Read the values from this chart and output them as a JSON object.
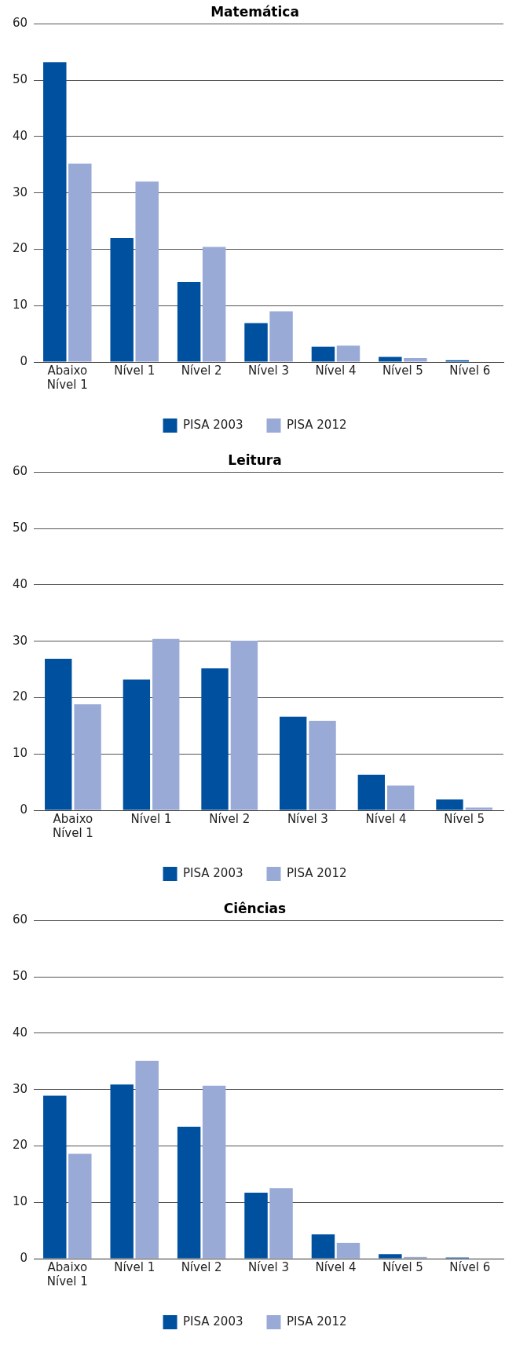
{
  "chart_data": [
    {
      "type": "bar",
      "title": "Matemática",
      "categories": [
        "Abaixo Nível 1",
        "Nível 1",
        "Nível 2",
        "Nível 3",
        "Nível 4",
        "Nível 5",
        "Nível 6"
      ],
      "series": [
        {
          "name": "PISA 2003",
          "color": "#0050a0",
          "values": [
            53.2,
            22.0,
            14.2,
            6.9,
            2.7,
            0.9,
            0.3
          ]
        },
        {
          "name": "PISA 2012",
          "color": "#9aaad6",
          "values": [
            35.2,
            32.0,
            20.4,
            9.0,
            2.9,
            0.7,
            null
          ]
        }
      ],
      "ylim": [
        0,
        60
      ],
      "yticks": [
        0,
        10,
        20,
        30,
        40,
        50,
        60
      ],
      "grid": "y",
      "legend": "bottom"
    },
    {
      "type": "bar",
      "title": "Leitura",
      "categories": [
        "Abaixo Nível 1",
        "Nível 1",
        "Nível 2",
        "Nível 3",
        "Nível 4",
        "Nível 5"
      ],
      "series": [
        {
          "name": "PISA 2003",
          "color": "#0050a0",
          "values": [
            26.9,
            23.2,
            25.2,
            16.6,
            6.3,
            1.9
          ]
        },
        {
          "name": "PISA 2012",
          "color": "#9aaad6",
          "values": [
            18.8,
            30.4,
            30.1,
            15.9,
            4.4,
            0.5
          ]
        }
      ],
      "ylim": [
        0,
        60
      ],
      "yticks": [
        0,
        10,
        20,
        30,
        40,
        50,
        60
      ],
      "grid": "y",
      "legend": "bottom"
    },
    {
      "type": "bar",
      "title": "Ciências",
      "categories": [
        "Abaixo Nível 1",
        "Nível 1",
        "Nível 2",
        "Nível 3",
        "Nível 4",
        "Nível 5",
        "Nível 6"
      ],
      "series": [
        {
          "name": "PISA 2003",
          "color": "#0050a0",
          "values": [
            28.9,
            30.9,
            23.4,
            11.7,
            4.3,
            0.8,
            0.2
          ]
        },
        {
          "name": "PISA 2012",
          "color": "#9aaad6",
          "values": [
            18.6,
            35.1,
            30.7,
            12.5,
            2.8,
            0.3,
            null
          ]
        }
      ],
      "ylim": [
        0,
        60
      ],
      "yticks": [
        0,
        10,
        20,
        30,
        40,
        50,
        60
      ],
      "grid": "y",
      "legend": "bottom"
    }
  ]
}
